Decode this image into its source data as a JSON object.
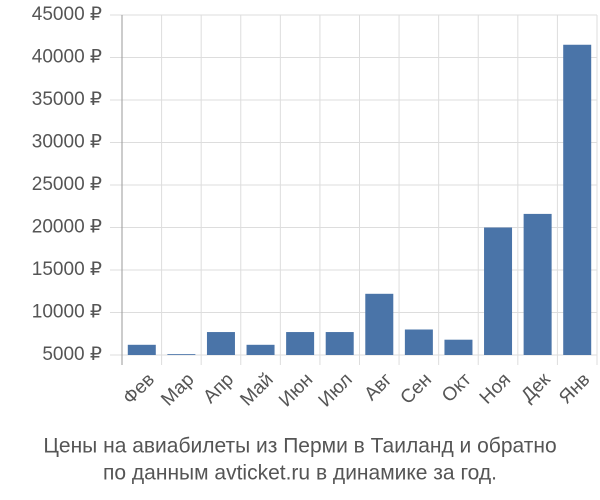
{
  "chart_data": {
    "type": "bar",
    "title": [
      "Цены на авиабилеты из Перми в Таиланд и обратно",
      "по данным avticket.ru в динамике за год."
    ],
    "categories": [
      "Фев",
      "Мар",
      "Апр",
      "Май",
      "Июн",
      "Июл",
      "Авг",
      "Сен",
      "Окт",
      "Ноя",
      "Дек",
      "Янв"
    ],
    "values": [
      6200,
      5100,
      7700,
      6200,
      7700,
      7700,
      12200,
      8000,
      6800,
      20000,
      21600,
      41500
    ],
    "color": "#4a74a8",
    "ylim": [
      5000,
      45000
    ],
    "yticks": [
      {
        "value": 5000,
        "label": "5000 ₽"
      },
      {
        "value": 10000,
        "label": "10000 ₽"
      },
      {
        "value": 15000,
        "label": "15000 ₽"
      },
      {
        "value": 20000,
        "label": "20000 ₽"
      },
      {
        "value": 25000,
        "label": "25000 ₽"
      },
      {
        "value": 30000,
        "label": "30000 ₽"
      },
      {
        "value": 35000,
        "label": "35000 ₽"
      },
      {
        "value": 40000,
        "label": "40000 ₽"
      },
      {
        "value": 45000,
        "label": "45000 ₽"
      }
    ],
    "grid": true
  }
}
